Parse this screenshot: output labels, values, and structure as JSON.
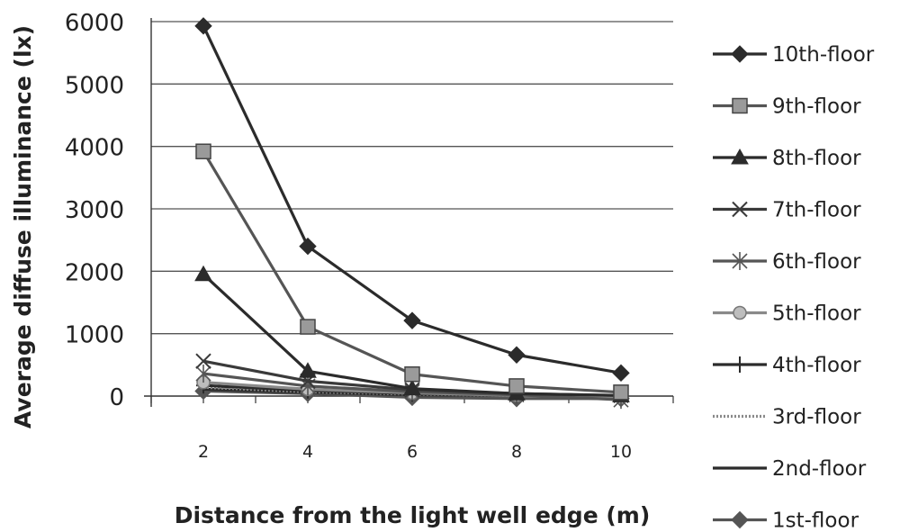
{
  "chart_data": {
    "type": "line",
    "title": "",
    "xlabel": "Distance from the light well edge (m)",
    "ylabel": "Average diffuse illuminance (lx)",
    "x": [
      2,
      4,
      6,
      8,
      10
    ],
    "xticks": [
      "2",
      "4",
      "6",
      "8",
      "10"
    ],
    "yticks": [
      "0",
      "1000",
      "2000",
      "3000",
      "4000",
      "5000",
      "6000"
    ],
    "ylim": [
      0,
      6000
    ],
    "grid": "horizontal",
    "legend_position": "right",
    "series": [
      {
        "name": "10th-floor",
        "marker": "diamond",
        "color": "#2b2b2b",
        "values": [
          5930,
          2400,
          1210,
          660,
          370
        ]
      },
      {
        "name": "9th-floor",
        "marker": "square",
        "color": "#555555",
        "values": [
          3920,
          1110,
          350,
          160,
          60
        ]
      },
      {
        "name": "8th-floor",
        "marker": "triangle",
        "color": "#2b2b2b",
        "values": [
          1950,
          400,
          120,
          40,
          10
        ]
      },
      {
        "name": "7th-floor",
        "marker": "x",
        "color": "#3a3a3a",
        "values": [
          560,
          240,
          100,
          40,
          10
        ]
      },
      {
        "name": "6th-floor",
        "marker": "star",
        "color": "#555555",
        "values": [
          360,
          160,
          70,
          20,
          -60
        ]
      },
      {
        "name": "5th-floor",
        "marker": "circle",
        "color": "#8a8a8a",
        "values": [
          220,
          110,
          50,
          10,
          -20
        ]
      },
      {
        "name": "4th-floor",
        "marker": "plus",
        "color": "#2b2b2b",
        "values": [
          170,
          90,
          40,
          10,
          0
        ]
      },
      {
        "name": "3rd-floor",
        "marker": "none",
        "color": "#8a8a8a",
        "values": [
          140,
          70,
          30,
          10,
          0
        ]
      },
      {
        "name": "2nd-floor",
        "marker": "none",
        "color": "#2b2b2b",
        "values": [
          110,
          60,
          20,
          10,
          0
        ]
      },
      {
        "name": "1st-floor",
        "marker": "diamond",
        "color": "#555555",
        "values": [
          80,
          40,
          -20,
          -40,
          -40
        ]
      }
    ]
  }
}
